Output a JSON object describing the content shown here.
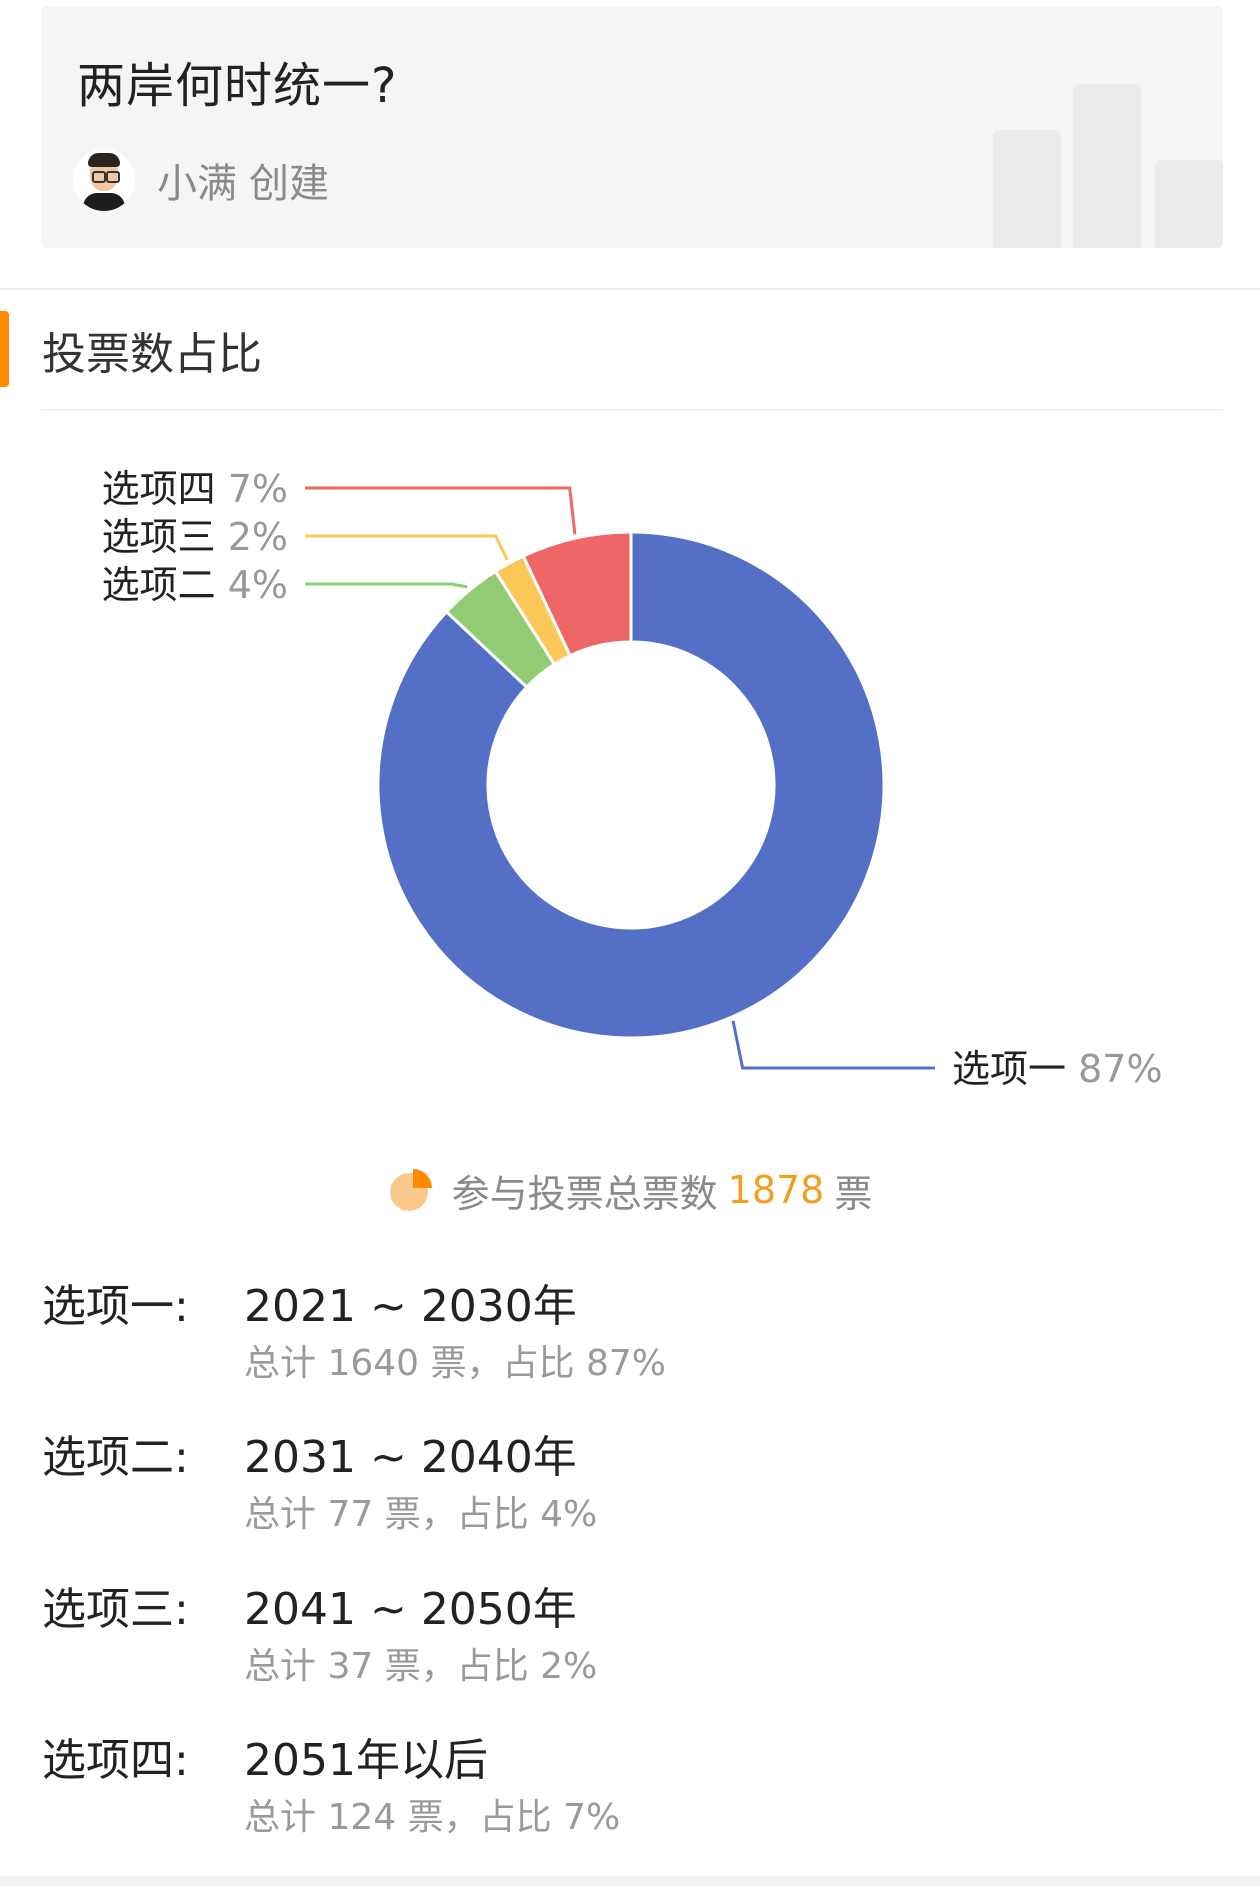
{
  "header": {
    "title": "两岸何时统一?",
    "creator_name": "小满",
    "creator_suffix": "创建"
  },
  "section": {
    "title": "投票数占比"
  },
  "chart_data": {
    "type": "pie",
    "donut": true,
    "series": [
      {
        "name": "选项一",
        "value": 87,
        "color": "#5470c6"
      },
      {
        "name": "选项二",
        "value": 4,
        "color": "#91cc75"
      },
      {
        "name": "选项三",
        "value": 2,
        "color": "#fac858"
      },
      {
        "name": "选项四",
        "value": 7,
        "color": "#ee6666"
      }
    ],
    "labels": [
      "选项一",
      "选项二",
      "选项三",
      "选项四"
    ],
    "percent_labels": [
      "87%",
      "4%",
      "2%",
      "7%"
    ]
  },
  "summary": {
    "prefix": "参与投票总票数",
    "total": "1878",
    "suffix": "票",
    "icon": "pie-chart-icon"
  },
  "options": [
    {
      "label": "选项一:",
      "range": "2021 ~ 2030年",
      "stats": "总计 1640 票，占比 87%"
    },
    {
      "label": "选项二:",
      "range": "2031 ~ 2040年",
      "stats": "总计 77 票，占比 4%"
    },
    {
      "label": "选项三:",
      "range": "2041 ~ 2050年",
      "stats": "总计 37 票，占比 2%"
    },
    {
      "label": "选项四:",
      "range": "2051年以后",
      "stats": "总计 124 票，占比 7%"
    }
  ]
}
